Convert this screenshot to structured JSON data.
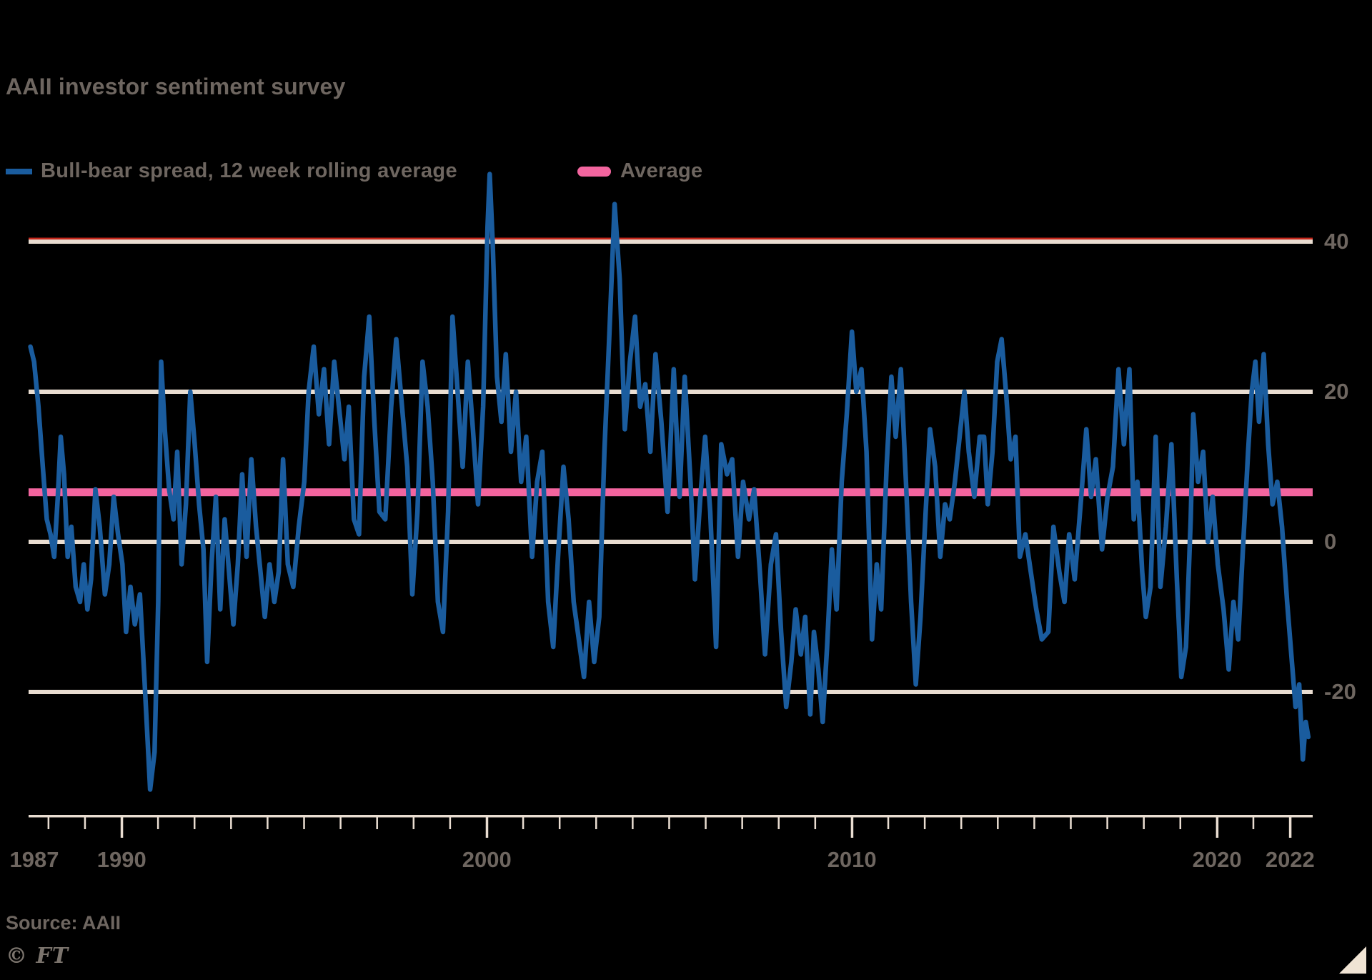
{
  "header": {
    "title": "AAII investor sentiment survey"
  },
  "legend": {
    "series_label": "Bull-bear spread, 12 week rolling average",
    "average_label": "Average"
  },
  "footer": {
    "source": "Source: AAII",
    "ft_mark": "© FT"
  },
  "colors": {
    "background": "#000000",
    "text": "#6e6660",
    "gridline": "#e9ddd1",
    "gridline_accent_red": "#c5281c",
    "series_blue": "#1a5c9e",
    "average_pink": "#f3659f",
    "corner_triangle": "#f0e4d4"
  },
  "chart_data": {
    "type": "line",
    "title": "AAII investor sentiment survey",
    "xlabel": "",
    "ylabel": "",
    "x_axis": {
      "range": [
        1987.45,
        2022.62
      ],
      "tick_interval_years": 1,
      "labeled_ticks": [
        1987,
        1990,
        2000,
        2010,
        2020,
        2022
      ]
    },
    "y_axis": {
      "side": "right",
      "gridlines": [
        40,
        20,
        0,
        -20
      ],
      "range": [
        -36,
        49
      ]
    },
    "average_line": {
      "label": "Average",
      "value": 6.6
    },
    "series": [
      {
        "name": "Bull-bear spread, 12 week rolling average",
        "points": [
          [
            1987.5,
            26
          ],
          [
            1987.6,
            24
          ],
          [
            1987.72,
            18
          ],
          [
            1987.84,
            10
          ],
          [
            1987.95,
            3
          ],
          [
            1988.05,
            1
          ],
          [
            1988.15,
            -2
          ],
          [
            1988.25,
            6
          ],
          [
            1988.33,
            14
          ],
          [
            1988.42,
            9
          ],
          [
            1988.52,
            -2
          ],
          [
            1988.62,
            2
          ],
          [
            1988.74,
            -6
          ],
          [
            1988.86,
            -8
          ],
          [
            1988.96,
            -3
          ],
          [
            1989.06,
            -9
          ],
          [
            1989.16,
            -5
          ],
          [
            1989.28,
            7
          ],
          [
            1989.4,
            2
          ],
          [
            1989.54,
            -7
          ],
          [
            1989.66,
            -3
          ],
          [
            1989.78,
            6
          ],
          [
            1989.9,
            1
          ],
          [
            1990.02,
            -3
          ],
          [
            1990.12,
            -12
          ],
          [
            1990.24,
            -6
          ],
          [
            1990.36,
            -11
          ],
          [
            1990.5,
            -7
          ],
          [
            1990.62,
            -18
          ],
          [
            1990.78,
            -33
          ],
          [
            1990.9,
            -28
          ],
          [
            1991.0,
            -8
          ],
          [
            1991.08,
            24
          ],
          [
            1991.18,
            15
          ],
          [
            1991.3,
            7
          ],
          [
            1991.42,
            3
          ],
          [
            1991.52,
            12
          ],
          [
            1991.64,
            -3
          ],
          [
            1991.76,
            5
          ],
          [
            1991.88,
            20
          ],
          [
            1992.0,
            13
          ],
          [
            1992.12,
            5
          ],
          [
            1992.24,
            -1
          ],
          [
            1992.34,
            -16
          ],
          [
            1992.46,
            -3
          ],
          [
            1992.58,
            6
          ],
          [
            1992.7,
            -9
          ],
          [
            1992.82,
            3
          ],
          [
            1992.94,
            -4
          ],
          [
            1993.06,
            -11
          ],
          [
            1993.18,
            -3
          ],
          [
            1993.3,
            9
          ],
          [
            1993.42,
            -2
          ],
          [
            1993.55,
            11
          ],
          [
            1993.68,
            2
          ],
          [
            1993.8,
            -4
          ],
          [
            1993.92,
            -10
          ],
          [
            1994.05,
            -3
          ],
          [
            1994.18,
            -8
          ],
          [
            1994.3,
            -4
          ],
          [
            1994.42,
            11
          ],
          [
            1994.55,
            -3
          ],
          [
            1994.7,
            -6
          ],
          [
            1994.85,
            2
          ],
          [
            1995.0,
            8
          ],
          [
            1995.12,
            20
          ],
          [
            1995.26,
            26
          ],
          [
            1995.4,
            17
          ],
          [
            1995.54,
            23
          ],
          [
            1995.68,
            13
          ],
          [
            1995.82,
            24
          ],
          [
            1995.95,
            18
          ],
          [
            1996.1,
            11
          ],
          [
            1996.22,
            18
          ],
          [
            1996.36,
            3
          ],
          [
            1996.5,
            1
          ],
          [
            1996.64,
            22
          ],
          [
            1996.78,
            30
          ],
          [
            1996.92,
            16
          ],
          [
            1997.06,
            4
          ],
          [
            1997.22,
            3
          ],
          [
            1997.38,
            18
          ],
          [
            1997.52,
            27
          ],
          [
            1997.66,
            19
          ],
          [
            1997.82,
            10
          ],
          [
            1997.96,
            -7
          ],
          [
            1998.1,
            4
          ],
          [
            1998.24,
            24
          ],
          [
            1998.38,
            18
          ],
          [
            1998.52,
            8
          ],
          [
            1998.66,
            -8
          ],
          [
            1998.8,
            -12
          ],
          [
            1998.94,
            4
          ],
          [
            1999.06,
            30
          ],
          [
            1999.2,
            20
          ],
          [
            1999.34,
            10
          ],
          [
            1999.48,
            24
          ],
          [
            1999.62,
            15
          ],
          [
            1999.76,
            5
          ],
          [
            1999.9,
            18
          ],
          [
            2000.02,
            42
          ],
          [
            2000.08,
            49
          ],
          [
            2000.16,
            40
          ],
          [
            2000.28,
            22
          ],
          [
            2000.4,
            16
          ],
          [
            2000.52,
            25
          ],
          [
            2000.66,
            12
          ],
          [
            2000.8,
            20
          ],
          [
            2000.94,
            8
          ],
          [
            2001.08,
            14
          ],
          [
            2001.24,
            -2
          ],
          [
            2001.38,
            8
          ],
          [
            2001.52,
            12
          ],
          [
            2001.68,
            -8
          ],
          [
            2001.82,
            -14
          ],
          [
            2001.95,
            -2
          ],
          [
            2002.1,
            10
          ],
          [
            2002.24,
            3
          ],
          [
            2002.38,
            -8
          ],
          [
            2002.52,
            -13
          ],
          [
            2002.66,
            -18
          ],
          [
            2002.8,
            -8
          ],
          [
            2002.94,
            -16
          ],
          [
            2003.08,
            -10
          ],
          [
            2003.22,
            12
          ],
          [
            2003.36,
            28
          ],
          [
            2003.5,
            45
          ],
          [
            2003.64,
            35
          ],
          [
            2003.78,
            15
          ],
          [
            2003.92,
            24
          ],
          [
            2004.06,
            30
          ],
          [
            2004.2,
            18
          ],
          [
            2004.34,
            21
          ],
          [
            2004.48,
            12
          ],
          [
            2004.62,
            25
          ],
          [
            2004.78,
            16
          ],
          [
            2004.95,
            4
          ],
          [
            2005.12,
            23
          ],
          [
            2005.28,
            6
          ],
          [
            2005.42,
            22
          ],
          [
            2005.58,
            8
          ],
          [
            2005.7,
            -5
          ],
          [
            2005.85,
            6
          ],
          [
            2005.98,
            14
          ],
          [
            2006.12,
            4
          ],
          [
            2006.28,
            -14
          ],
          [
            2006.42,
            13
          ],
          [
            2006.58,
            9
          ],
          [
            2006.72,
            11
          ],
          [
            2006.88,
            -2
          ],
          [
            2007.02,
            8
          ],
          [
            2007.18,
            3
          ],
          [
            2007.32,
            7
          ],
          [
            2007.48,
            -4
          ],
          [
            2007.62,
            -15
          ],
          [
            2007.78,
            -3
          ],
          [
            2007.92,
            1
          ],
          [
            2008.06,
            -12
          ],
          [
            2008.2,
            -22
          ],
          [
            2008.34,
            -16
          ],
          [
            2008.46,
            -9
          ],
          [
            2008.6,
            -15
          ],
          [
            2008.72,
            -10
          ],
          [
            2008.86,
            -23
          ],
          [
            2008.96,
            -12
          ],
          [
            2009.08,
            -17
          ],
          [
            2009.2,
            -24
          ],
          [
            2009.32,
            -14
          ],
          [
            2009.45,
            -1
          ],
          [
            2009.58,
            -9
          ],
          [
            2009.72,
            8
          ],
          [
            2009.86,
            17
          ],
          [
            2010.0,
            28
          ],
          [
            2010.12,
            20
          ],
          [
            2010.26,
            23
          ],
          [
            2010.4,
            12
          ],
          [
            2010.55,
            -13
          ],
          [
            2010.68,
            -3
          ],
          [
            2010.8,
            -9
          ],
          [
            2010.95,
            10
          ],
          [
            2011.08,
            22
          ],
          [
            2011.2,
            14
          ],
          [
            2011.34,
            23
          ],
          [
            2011.48,
            8
          ],
          [
            2011.62,
            -8
          ],
          [
            2011.75,
            -19
          ],
          [
            2011.88,
            -10
          ],
          [
            2012.02,
            4
          ],
          [
            2012.14,
            15
          ],
          [
            2012.28,
            10
          ],
          [
            2012.42,
            -2
          ],
          [
            2012.55,
            5
          ],
          [
            2012.68,
            3
          ],
          [
            2012.82,
            8
          ],
          [
            2012.95,
            14
          ],
          [
            2013.08,
            20
          ],
          [
            2013.2,
            12
          ],
          [
            2013.35,
            6
          ],
          [
            2013.5,
            14
          ],
          [
            2013.62,
            14
          ],
          [
            2013.72,
            5
          ],
          [
            2013.85,
            12
          ],
          [
            2013.98,
            24
          ],
          [
            2014.1,
            27
          ],
          [
            2014.22,
            20
          ],
          [
            2014.35,
            11
          ],
          [
            2014.48,
            14
          ],
          [
            2014.6,
            -2
          ],
          [
            2014.75,
            1
          ],
          [
            2014.9,
            -4
          ],
          [
            2015.05,
            -9
          ],
          [
            2015.2,
            -13
          ],
          [
            2015.38,
            -12
          ],
          [
            2015.52,
            2
          ],
          [
            2015.68,
            -4
          ],
          [
            2015.82,
            -8
          ],
          [
            2015.95,
            1
          ],
          [
            2016.1,
            -5
          ],
          [
            2016.28,
            6
          ],
          [
            2016.42,
            15
          ],
          [
            2016.55,
            6
          ],
          [
            2016.68,
            11
          ],
          [
            2016.85,
            -1
          ],
          [
            2017.0,
            6
          ],
          [
            2017.15,
            10
          ],
          [
            2017.3,
            23
          ],
          [
            2017.45,
            13
          ],
          [
            2017.6,
            23
          ],
          [
            2017.72,
            3
          ],
          [
            2017.82,
            8
          ],
          [
            2017.95,
            -4
          ],
          [
            2018.05,
            -10
          ],
          [
            2018.18,
            -6
          ],
          [
            2018.32,
            14
          ],
          [
            2018.45,
            -6
          ],
          [
            2018.6,
            2
          ],
          [
            2018.75,
            13
          ],
          [
            2018.9,
            -5
          ],
          [
            2019.02,
            -18
          ],
          [
            2019.15,
            -14
          ],
          [
            2019.28,
            3
          ],
          [
            2019.35,
            17
          ],
          [
            2019.48,
            8
          ],
          [
            2019.62,
            12
          ],
          [
            2019.75,
            0
          ],
          [
            2019.88,
            6
          ],
          [
            2020.02,
            -3
          ],
          [
            2020.18,
            -9
          ],
          [
            2020.32,
            -17
          ],
          [
            2020.45,
            -8
          ],
          [
            2020.58,
            -13
          ],
          [
            2020.72,
            0
          ],
          [
            2020.85,
            12
          ],
          [
            2020.95,
            20
          ],
          [
            2021.05,
            24
          ],
          [
            2021.15,
            16
          ],
          [
            2021.28,
            25
          ],
          [
            2021.4,
            13
          ],
          [
            2021.52,
            5
          ],
          [
            2021.65,
            8
          ],
          [
            2021.78,
            2
          ],
          [
            2021.92,
            -8
          ],
          [
            2022.05,
            -16
          ],
          [
            2022.15,
            -22
          ],
          [
            2022.25,
            -19
          ],
          [
            2022.35,
            -29
          ],
          [
            2022.43,
            -24
          ],
          [
            2022.5,
            -26
          ]
        ]
      }
    ]
  }
}
